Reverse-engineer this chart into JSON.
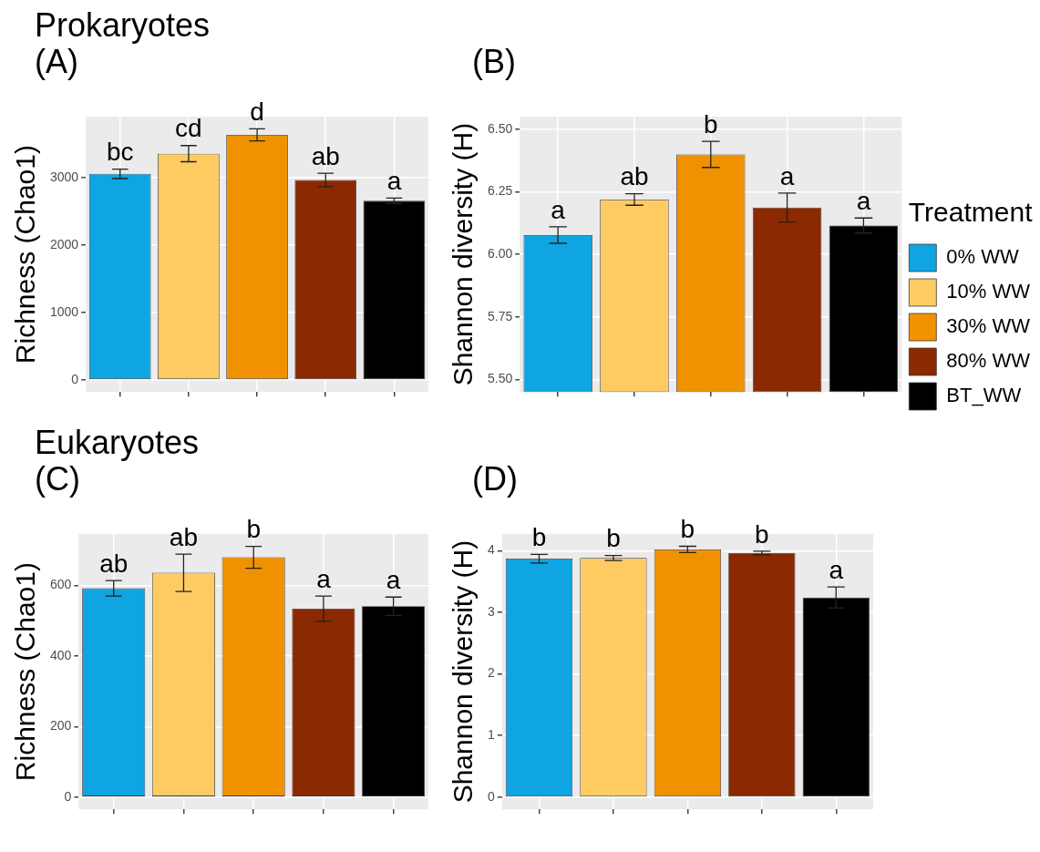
{
  "chart_data": [
    {
      "type": "bar",
      "title": "Prokaryotes",
      "subtitle": "(A)",
      "ylabel": "Richness (Chao1)",
      "categories": [
        null,
        null,
        null,
        null,
        null
      ],
      "values": [
        3060,
        3360,
        3640,
        2970,
        2660
      ],
      "errors": [
        70,
        120,
        90,
        100,
        40
      ],
      "value_labels": [
        "bc",
        "cd",
        "d",
        "ab",
        "a"
      ],
      "colors": [
        "#0ea5e2",
        "#fecb63",
        "#f09200",
        "#8b2900",
        "#000000"
      ],
      "ylim": [
        -180,
        3910
      ],
      "yticks": [
        0,
        1000,
        2000,
        3000
      ],
      "grid": true
    },
    {
      "type": "bar",
      "title": "(B)",
      "ylabel": "Shannon diversity (H)",
      "categories": [
        null,
        null,
        null,
        null,
        null
      ],
      "series": [
        {
          "name": "0% WW",
          "color": "#0ea5e2",
          "values": [
            6.077,
            null,
            null,
            null,
            null
          ],
          "errors": [
            0.033,
            null,
            null,
            null,
            null
          ],
          "value_labels": [
            "a",
            null,
            null,
            null,
            null
          ]
        },
        {
          "name": "10% WW",
          "color": "#fecb63",
          "values": [
            null,
            6.219,
            null,
            null,
            null
          ],
          "errors": [
            null,
            0.023,
            null,
            null,
            null
          ],
          "value_labels": [
            null,
            "ab",
            null,
            null,
            null
          ]
        },
        {
          "name": "30% WW",
          "color": "#f09200",
          "values": [
            null,
            null,
            6.399,
            null,
            null
          ],
          "errors": [
            null,
            null,
            0.052,
            null,
            null
          ],
          "value_labels": [
            null,
            null,
            "b",
            null,
            null
          ]
        },
        {
          "name": "80% WW",
          "color": "#8b2900",
          "values": [
            null,
            null,
            null,
            6.187,
            null
          ],
          "errors": [
            null,
            null,
            null,
            0.058,
            null
          ],
          "value_labels": [
            null,
            null,
            null,
            "a",
            null
          ]
        },
        {
          "name": "BT_WW",
          "color": "#000000",
          "values": [
            null,
            null,
            null,
            null,
            6.115
          ],
          "errors": [
            null,
            null,
            null,
            null,
            0.03
          ],
          "value_labels": [
            null,
            null,
            null,
            null,
            "a"
          ]
        }
      ],
      "ylim": [
        5.45,
        6.55
      ],
      "yticks": [
        {
          "value": 5.5,
          "label": "5.50"
        },
        {
          "value": 5.75,
          "label": "5.75"
        },
        {
          "value": 6.0,
          "label": "6.00"
        },
        {
          "value": 6.25,
          "label": "6.25"
        },
        {
          "value": 6.5,
          "label": "6.50"
        }
      ],
      "grid": true,
      "legend": "bottom right",
      "legend_title": "Treatment"
    },
    {
      "type": "bar",
      "title": "Eukaryotes",
      "subtitle": "(C)",
      "ylabel": "Richness (Chao1)",
      "categories": [
        null,
        null,
        null,
        null,
        null
      ],
      "values": [
        592,
        636,
        680,
        534,
        541
      ],
      "errors": [
        22,
        53,
        31,
        36,
        26
      ],
      "value_labels": [
        "ab",
        "ab",
        "b",
        "a",
        "a"
      ],
      "colors": [
        "#0ea5e2",
        "#fecb63",
        "#f09200",
        "#8b2900",
        "#000000"
      ],
      "ylim": [
        -35,
        746
      ],
      "yticks": [
        0,
        200,
        400,
        600
      ],
      "grid": true
    },
    {
      "type": "bar",
      "title": "(D)",
      "ylabel": "Shannon diversity (H)",
      "categories": [
        null,
        null,
        null,
        null,
        null
      ],
      "values": [
        3.87,
        3.88,
        4.02,
        3.96,
        3.24
      ],
      "errors": [
        0.07,
        0.04,
        0.05,
        0.03,
        0.17
      ],
      "value_labels": [
        "b",
        "b",
        "b",
        "b",
        "a"
      ],
      "colors": [
        "#0ea5e2",
        "#fecb63",
        "#f09200",
        "#8b2900",
        "#000000"
      ],
      "ylim": [
        -0.2,
        4.27
      ],
      "yticks": [
        0,
        1,
        2,
        3,
        4
      ],
      "grid": true
    }
  ]
}
